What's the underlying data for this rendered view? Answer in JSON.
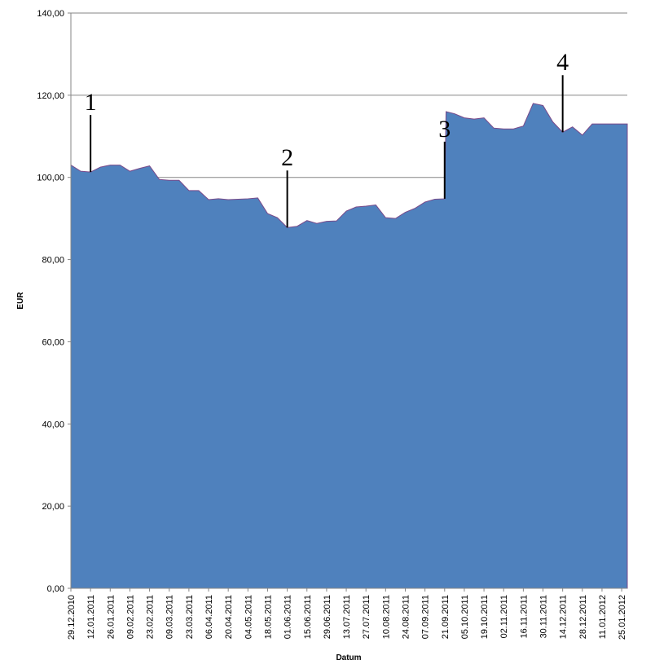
{
  "chart_data": {
    "type": "area",
    "x_label": "Datum",
    "y_label": "EUR",
    "x": [
      "29.12.2010",
      "05.01.2011",
      "12.01.2011",
      "19.01.2011",
      "26.01.2011",
      "02.02.2011",
      "09.02.2011",
      "16.02.2011",
      "23.02.2011",
      "02.03.2011",
      "09.03.2011",
      "16.03.2011",
      "23.03.2011",
      "30.03.2011",
      "06.04.2011",
      "13.04.2011",
      "20.04.2011",
      "27.04.2011",
      "04.05.2011",
      "11.05.2011",
      "18.05.2011",
      "25.05.2011",
      "01.06.2011",
      "08.06.2011",
      "15.06.2011",
      "22.06.2011",
      "29.06.2011",
      "06.07.2011",
      "13.07.2011",
      "20.07.2011",
      "27.07.2011",
      "03.08.2011",
      "10.08.2011",
      "17.08.2011",
      "24.08.2011",
      "31.08.2011",
      "07.09.2011",
      "14.09.2011",
      "21.09.2011",
      "22.09.2011",
      "28.09.2011",
      "05.10.2011",
      "12.10.2011",
      "19.10.2011",
      "26.10.2011",
      "02.11.2011",
      "09.11.2011",
      "16.11.2011",
      "23.11.2011",
      "30.11.2011",
      "07.12.2011",
      "14.12.2011",
      "21.12.2011",
      "28.12.2011",
      "04.01.2012",
      "11.01.2012",
      "18.01.2012",
      "25.01.2012",
      "29.01.2012"
    ],
    "values": [
      103,
      101.5,
      101.3,
      102.5,
      103,
      103,
      101.5,
      102.2,
      102.8,
      99.5,
      99.3,
      99.3,
      96.8,
      96.8,
      94.6,
      94.8,
      94.6,
      94.7,
      94.8,
      95,
      91.2,
      90.2,
      87.8,
      88.1,
      89.5,
      88.8,
      89.3,
      89.4,
      91.8,
      92.8,
      93,
      93.3,
      90.2,
      90,
      91.5,
      92.5,
      94,
      94.7,
      94.8,
      116,
      115.5,
      114.5,
      114.2,
      114.5,
      112,
      111.8,
      111.8,
      112.5,
      118,
      117.5,
      113.5,
      111,
      112.3,
      110.3,
      113,
      113,
      113,
      113,
      113
    ],
    "color": "#4f81bd",
    "xlim": [
      "29.12.2010",
      "29.01.2012"
    ],
    "xticks": [
      "29.12.2010",
      "12.01.2011",
      "26.01.2011",
      "09.02.2011",
      "23.02.2011",
      "09.03.2011",
      "23.03.2011",
      "06.04.2011",
      "20.04.2011",
      "04.05.2011",
      "18.05.2011",
      "01.06.2011",
      "15.06.2011",
      "29.06.2011",
      "13.07.2011",
      "27.07.2011",
      "10.08.2011",
      "24.08.2011",
      "07.09.2011",
      "21.09.2011",
      "05.10.2011",
      "19.10.2011",
      "02.11.2011",
      "16.11.2011",
      "30.11.2011",
      "14.12.2011",
      "28.12.2011",
      "11.01.2012",
      "25.01.2012"
    ],
    "ylim": [
      0,
      140
    ],
    "yticks": [
      {
        "value": 0,
        "label": "0,00"
      },
      {
        "value": 20,
        "label": "20,00"
      },
      {
        "value": 40,
        "label": "40,00"
      },
      {
        "value": 60,
        "label": "60,00"
      },
      {
        "value": 80,
        "label": "80,00"
      },
      {
        "value": 100,
        "label": "100,00"
      },
      {
        "value": 120,
        "label": "120,00"
      },
      {
        "value": 140,
        "label": "140,00"
      }
    ],
    "grid": true,
    "annotations": [
      {
        "text": "1",
        "x": "12.01.2011"
      },
      {
        "text": "2",
        "x": "01.06.2011"
      },
      {
        "text": "3",
        "x": "21.09.2011"
      },
      {
        "text": "4",
        "x": "14.12.2011"
      }
    ]
  }
}
